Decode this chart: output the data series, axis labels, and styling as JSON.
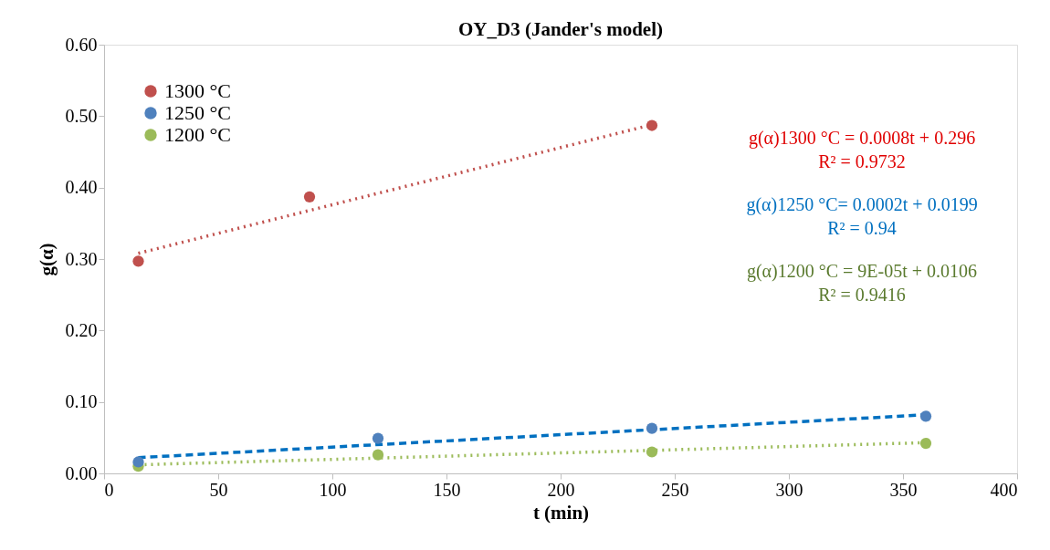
{
  "chart_data": {
    "type": "scatter",
    "title": "OY_D3 (Jander's model)",
    "xlabel": "t (min)",
    "ylabel": "g(α)",
    "xlim": [
      0,
      400
    ],
    "xticks": [
      0,
      50,
      100,
      150,
      200,
      250,
      300,
      350,
      400
    ],
    "ylim": [
      0,
      0.6
    ],
    "yticks": [
      {
        "value": 0,
        "label": "0.00"
      },
      {
        "value": 0.1,
        "label": "0.10"
      },
      {
        "value": 0.2,
        "label": "0.20"
      },
      {
        "value": 0.3,
        "label": "0.30"
      },
      {
        "value": 0.4,
        "label": "0.40"
      },
      {
        "value": 0.5,
        "label": "0.50"
      },
      {
        "value": 0.6,
        "label": "0.60"
      }
    ],
    "grid": false,
    "legend": "top left",
    "marker": "circle",
    "series": [
      {
        "name": "1300 °C",
        "color": "#c0504d",
        "x": [
          15,
          90,
          240
        ],
        "values": [
          0.297,
          0.387,
          0.487
        ]
      },
      {
        "name": "1250 °C",
        "color": "#4f81bd",
        "x": [
          15,
          120,
          240,
          360
        ],
        "values": [
          0.016,
          0.049,
          0.063,
          0.08
        ]
      },
      {
        "name": "1200 °C",
        "color": "#9bbb59",
        "x": [
          15,
          120,
          240,
          360
        ],
        "values": [
          0.01,
          0.026,
          0.03,
          0.042
        ]
      },
      {
        "type": "line",
        "color": "#c0504d",
        "line_style": "dotted",
        "marker": "none",
        "x": [
          15,
          240
        ],
        "values": [
          0.308,
          0.488
        ]
      },
      {
        "type": "line",
        "color": "#0070c0",
        "line_style": "dashed",
        "marker": "none",
        "x": [
          15,
          360
        ],
        "values": [
          0.022,
          0.082
        ]
      },
      {
        "type": "line",
        "color": "#9bbb59",
        "line_style": "dotted",
        "marker": "none",
        "x": [
          15,
          360
        ],
        "values": [
          0.012,
          0.043
        ]
      }
    ],
    "annotations": [
      "g(α)1300 °C = 0.0008t + 0.296",
      "R² = 0.9732",
      "g(α)1250 °C= 0.0002t + 0.0199",
      "R² = 0.94",
      "g(α)1200 °C = 9E-05t + 0.0106",
      "R² = 0.9416"
    ]
  }
}
